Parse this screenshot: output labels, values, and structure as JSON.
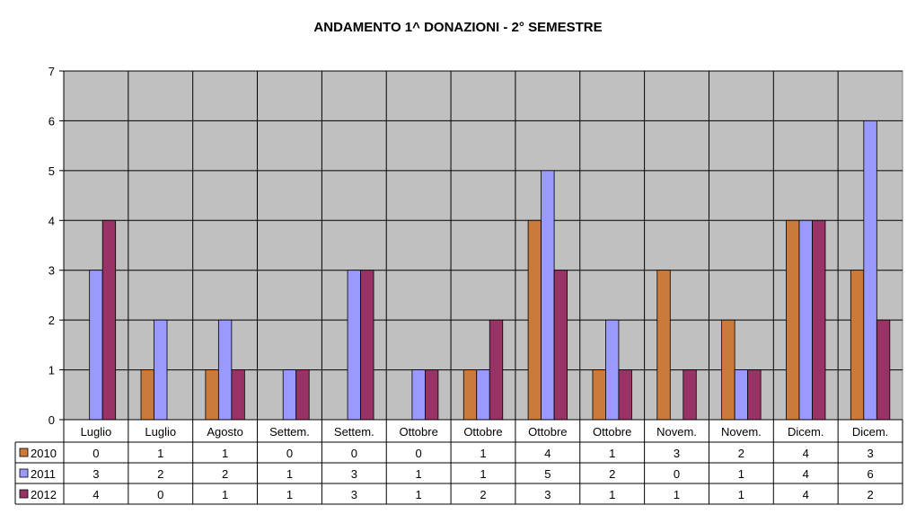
{
  "chart_data": {
    "type": "bar",
    "title": "ANDAMENTO 1^ DONAZIONI  -  2° SEMESTRE",
    "categories": [
      "Luglio",
      "Luglio",
      "Agosto",
      "Settem.",
      "Settem.",
      "Ottobre",
      "Ottobre",
      "Ottobre",
      "Ottobre",
      "Novem.",
      "Novem.",
      "Dicem.",
      "Dicem."
    ],
    "ylim": [
      0,
      7
    ],
    "yticks": [
      0,
      1,
      2,
      3,
      4,
      5,
      6,
      7
    ],
    "grid": true,
    "legend": "data-table-bottom",
    "series": [
      {
        "name": "2010",
        "color": "#cc7a3a",
        "values": [
          0,
          1,
          1,
          0,
          0,
          0,
          1,
          4,
          1,
          3,
          2,
          4,
          3
        ]
      },
      {
        "name": "2011",
        "color": "#9999ff",
        "values": [
          3,
          2,
          2,
          1,
          3,
          1,
          1,
          5,
          2,
          0,
          1,
          4,
          6
        ]
      },
      {
        "name": "2012",
        "color": "#993366",
        "values": [
          4,
          0,
          1,
          1,
          3,
          1,
          2,
          3,
          1,
          1,
          1,
          4,
          2
        ]
      }
    ],
    "plot_background": "#c0c0c0"
  }
}
